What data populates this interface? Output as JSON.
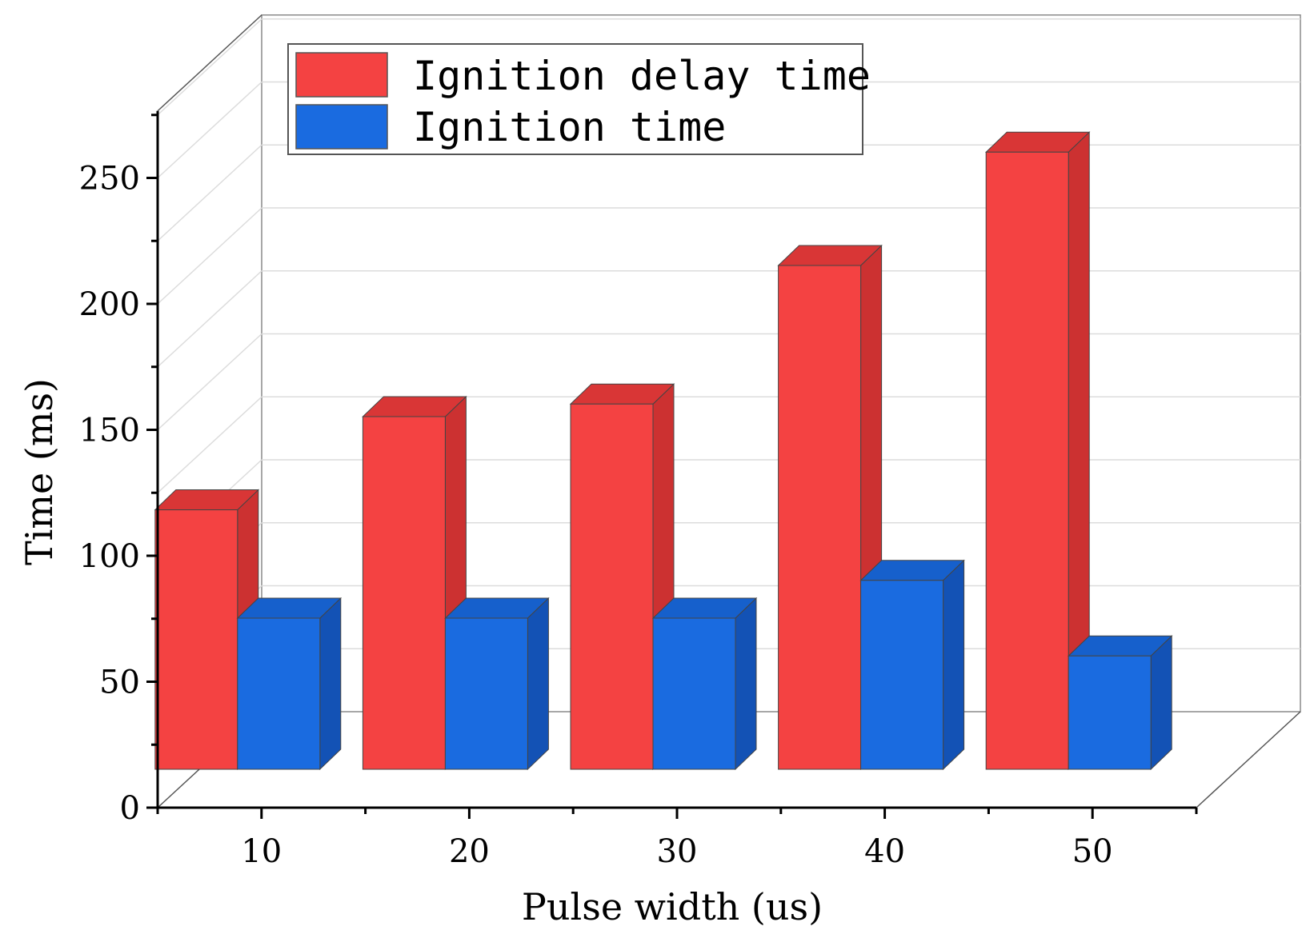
{
  "chart_data": {
    "type": "bar",
    "categories": [
      "10",
      "20",
      "30",
      "40",
      "50"
    ],
    "series": [
      {
        "name": "Ignition delay time",
        "values": [
          103,
          140,
          145,
          200,
          245
        ],
        "color": "#F44242",
        "side_color": "#CC3131",
        "top_color": "#D93636"
      },
      {
        "name": "Ignition time",
        "values": [
          60,
          60,
          60,
          75,
          45
        ],
        "color": "#1A6BE0",
        "side_color": "#1352B5",
        "top_color": "#1660CC"
      }
    ],
    "xlabel": "Pulse width (us)",
    "ylabel": "Time (ms)",
    "ylim": [
      0,
      275
    ],
    "yticks": [
      "0",
      "50",
      "100",
      "150",
      "200",
      "250"
    ],
    "grid": true,
    "legend_position": "top-left",
    "style": "3d"
  }
}
